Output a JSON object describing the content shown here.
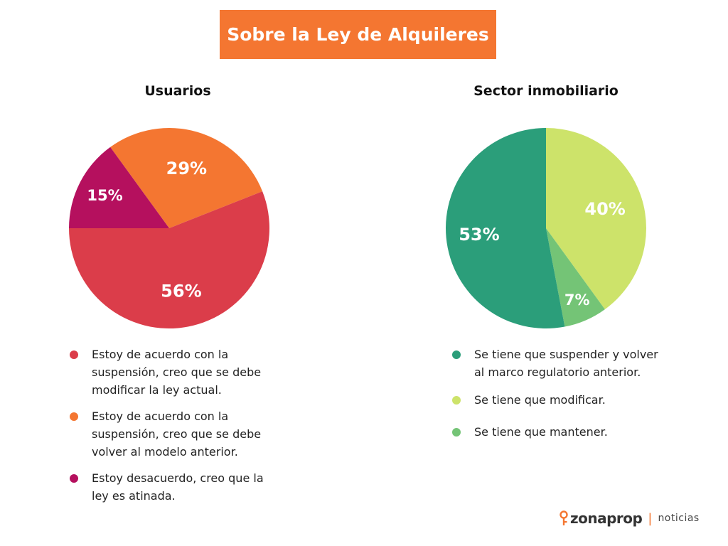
{
  "header": {
    "title": "Sobre la Ley de Alquileres"
  },
  "colors": {
    "accent": "#f47631",
    "brand": "#f47631"
  },
  "chart_data": [
    {
      "type": "pie",
      "title": "Usuarios",
      "categories": [
        "Estoy de acuerdo con la suspensión, creo que se debe volver al modelo anterior.",
        "Estoy de acuerdo con la suspensión, creo que se debe modificar la ley actual.",
        "Estoy desacuerdo, creo que la ley es atinada."
      ],
      "values": [
        29,
        56,
        15
      ],
      "labels": [
        "29%",
        "56%",
        "15%"
      ],
      "colors": [
        "#f47631",
        "#db3d4a",
        "#b5105e"
      ],
      "legend": [
        {
          "text": "Estoy de acuerdo con la suspensión, creo que se debe modificar la ley actual.",
          "color": "#db3d4a"
        },
        {
          "text": "Estoy de acuerdo con la suspensión, creo que se debe volver al modelo anterior.",
          "color": "#f47631"
        },
        {
          "text": "Estoy desacuerdo, creo que la ley es atinada.",
          "color": "#b5105e"
        }
      ],
      "legend_position": "bottom"
    },
    {
      "type": "pie",
      "title": "Sector inmobiliario",
      "categories": [
        "Se tiene que modificar.",
        "Se tiene que mantener.",
        "Se tiene que suspender y volver al marco regulatorio anterior."
      ],
      "values": [
        40,
        7,
        53
      ],
      "labels": [
        "40%",
        "7%",
        "53%"
      ],
      "colors": [
        "#cde36a",
        "#74c476",
        "#2b9e7a"
      ],
      "legend": [
        {
          "text": "Se tiene que suspender y volver al marco regulatorio anterior.",
          "color": "#2b9e7a"
        },
        {
          "text": "Se tiene que modificar.",
          "color": "#cde36a"
        },
        {
          "text": "Se tiene que mantener.",
          "color": "#74c476"
        }
      ],
      "legend_position": "bottom"
    }
  ],
  "branding": {
    "logo_text": "zonaprop",
    "separator": "|",
    "section": "noticias",
    "icon": "key-icon"
  }
}
